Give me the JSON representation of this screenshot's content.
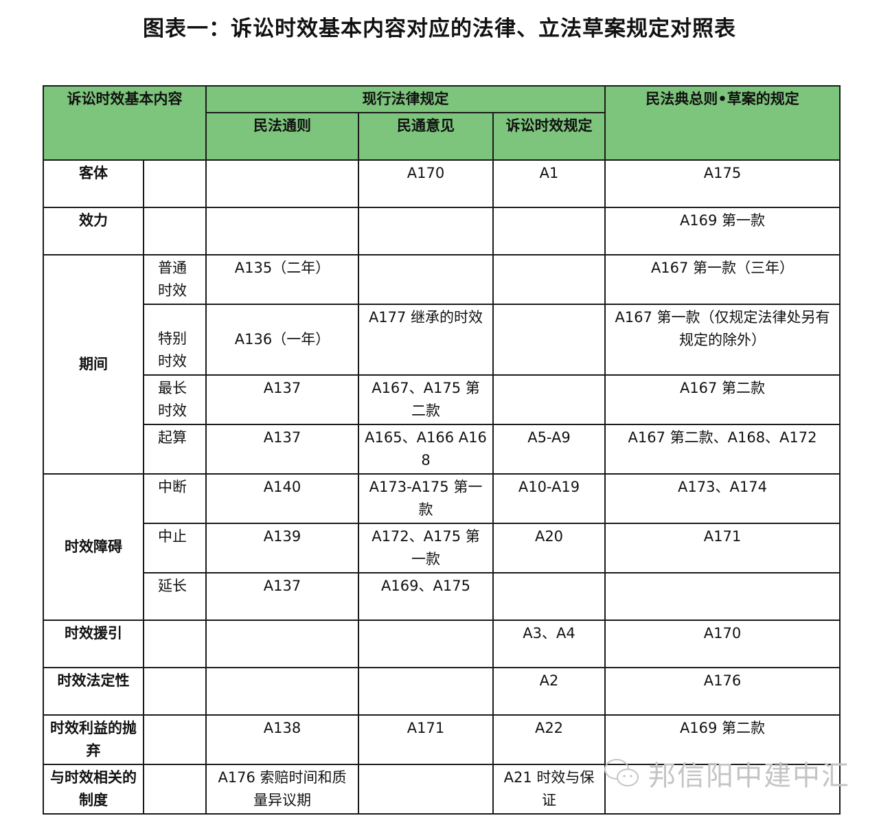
{
  "title": "图表一：诉讼时效基本内容对应的法律、立法草案规定对照表",
  "header": {
    "basic_content": "诉讼时效基本内容",
    "current_law": "现行法律规定",
    "draft": "民法典总则•草案的规定",
    "sub_columns": [
      "民法通则",
      "民通意见",
      "诉讼时效规定"
    ]
  },
  "rows": [
    {
      "category": "客体",
      "sub": "",
      "cells": [
        "",
        "A170",
        "A1",
        "A175"
      ]
    },
    {
      "category": "效力",
      "sub": "",
      "cells": [
        "",
        "",
        "",
        "A169 第一款"
      ]
    },
    {
      "category": "期间",
      "sub": "普通时效",
      "cells": [
        "A135（二年）",
        "",
        "",
        "A167  第一款（三年）"
      ]
    },
    {
      "category": "",
      "sub": "特别时效",
      "cells": [
        "A136（一年）",
        "A177  继承的时效",
        "",
        "A167 第一款（仅规定法律处另有规定的除外）"
      ]
    },
    {
      "category": "",
      "sub": "最长时效",
      "cells": [
        "A137",
        "A167、A175 第二款",
        "",
        "A167 第二款"
      ]
    },
    {
      "category": "",
      "sub": "起算",
      "cells": [
        "A137",
        "A165、A166 A168",
        "A5-A9",
        "A167 第二款、A168、A172"
      ]
    },
    {
      "category": "时效障碍",
      "sub": "中断",
      "cells": [
        "A140",
        "A173-A175 第一款",
        "A10-A19",
        "A173、A174"
      ]
    },
    {
      "category": "",
      "sub": "中止",
      "cells": [
        "A139",
        "A172、A175 第一款",
        "A20",
        "A171"
      ]
    },
    {
      "category": "",
      "sub": "延长",
      "cells": [
        "A137",
        "A169、A175",
        "",
        ""
      ]
    },
    {
      "category": "时效援引",
      "sub": "",
      "cells": [
        "",
        "",
        "A3、A4",
        "A170"
      ]
    },
    {
      "category": "时效法定性",
      "sub": "",
      "cells": [
        "",
        "",
        "A2",
        "A176"
      ]
    },
    {
      "category": "时效利益的抛弃",
      "sub": "",
      "cells": [
        "A138",
        "A171",
        "A22",
        "A169 第二款"
      ]
    },
    {
      "category": "与时效相关的制度",
      "sub": "",
      "cells": [
        "A176  索赔时间和质量异议期",
        "",
        "A21  时效与保证",
        ""
      ]
    }
  ],
  "watermark": {
    "text": "邦信阳中建中汇",
    "icon": "wechat-icon"
  },
  "colors": {
    "header_bg": "#7dc47c",
    "border": "#1a1a1a",
    "watermark": "#c4c4c4"
  }
}
